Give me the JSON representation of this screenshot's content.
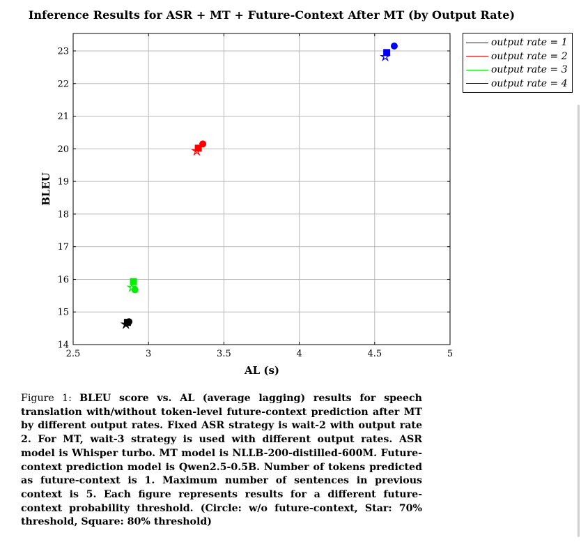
{
  "chart_data": {
    "type": "scatter",
    "title": "Inference Results for ASR + MT + Future-Context After MT (by Output Rate)",
    "xlabel": "AL (s)",
    "ylabel": "BLEU",
    "xlim": [
      2.5,
      5
    ],
    "ylim": [
      14,
      23.5
    ],
    "xticks": [
      "2.5",
      "3",
      "3.5",
      "4",
      "4.5",
      "5"
    ],
    "yticks": [
      "14",
      "15",
      "16",
      "17",
      "18",
      "19",
      "20",
      "21",
      "22",
      "23"
    ],
    "grid": true,
    "legend_position": "outside-top-right",
    "marker_legend": {
      "circle": "w/o future-context",
      "star": "70% threshold",
      "square": "80% threshold"
    },
    "series": [
      {
        "name": "output rate = 1",
        "legend_label": "output rate = 1",
        "color": "#0000ff",
        "points": [
          {
            "marker": "circle",
            "x": 4.63,
            "y": 23.15
          },
          {
            "marker": "star",
            "x": 4.57,
            "y": 22.82
          },
          {
            "marker": "square",
            "x": 4.58,
            "y": 22.95
          }
        ]
      },
      {
        "name": "output rate = 2",
        "legend_label": "output rate = 2",
        "color": "#ff0000",
        "points": [
          {
            "marker": "circle",
            "x": 3.36,
            "y": 20.15
          },
          {
            "marker": "star",
            "x": 3.32,
            "y": 19.93
          },
          {
            "marker": "square",
            "x": 3.33,
            "y": 20.02
          }
        ]
      },
      {
        "name": "output rate = 3",
        "legend_label": "output rate = 3",
        "color": "#00ee00",
        "points": [
          {
            "marker": "circle",
            "x": 2.91,
            "y": 15.68
          },
          {
            "marker": "star",
            "x": 2.89,
            "y": 15.75
          },
          {
            "marker": "square",
            "x": 2.9,
            "y": 15.93
          }
        ]
      },
      {
        "name": "output rate = 4",
        "legend_label": "output rate = 4",
        "color": "#000000",
        "points": [
          {
            "marker": "circle",
            "x": 2.87,
            "y": 14.7
          },
          {
            "marker": "star",
            "x": 2.85,
            "y": 14.62
          },
          {
            "marker": "square",
            "x": 2.86,
            "y": 14.68
          }
        ]
      }
    ]
  },
  "caption": {
    "head": "Figure 1: ",
    "body": "BLEU score vs. AL (average lagging) results for speech translation with/without token-level future-context prediction after MT by different output rates. Fixed ASR strategy is wait-2 with output rate 2. For MT, wait-3 strategy is used with different output rates. ASR model is Whisper turbo. MT model is NLLB-200-distilled-600M. Future-context prediction model is Qwen2.5-0.5B. Number of tokens predicted as future-context is 1. Maximum number of sentences in previous context is 5. Each figure represents results for a different future-context probability threshold. (Circle: w/o future-context, Star: 70% threshold, Square: 80% threshold)"
  }
}
